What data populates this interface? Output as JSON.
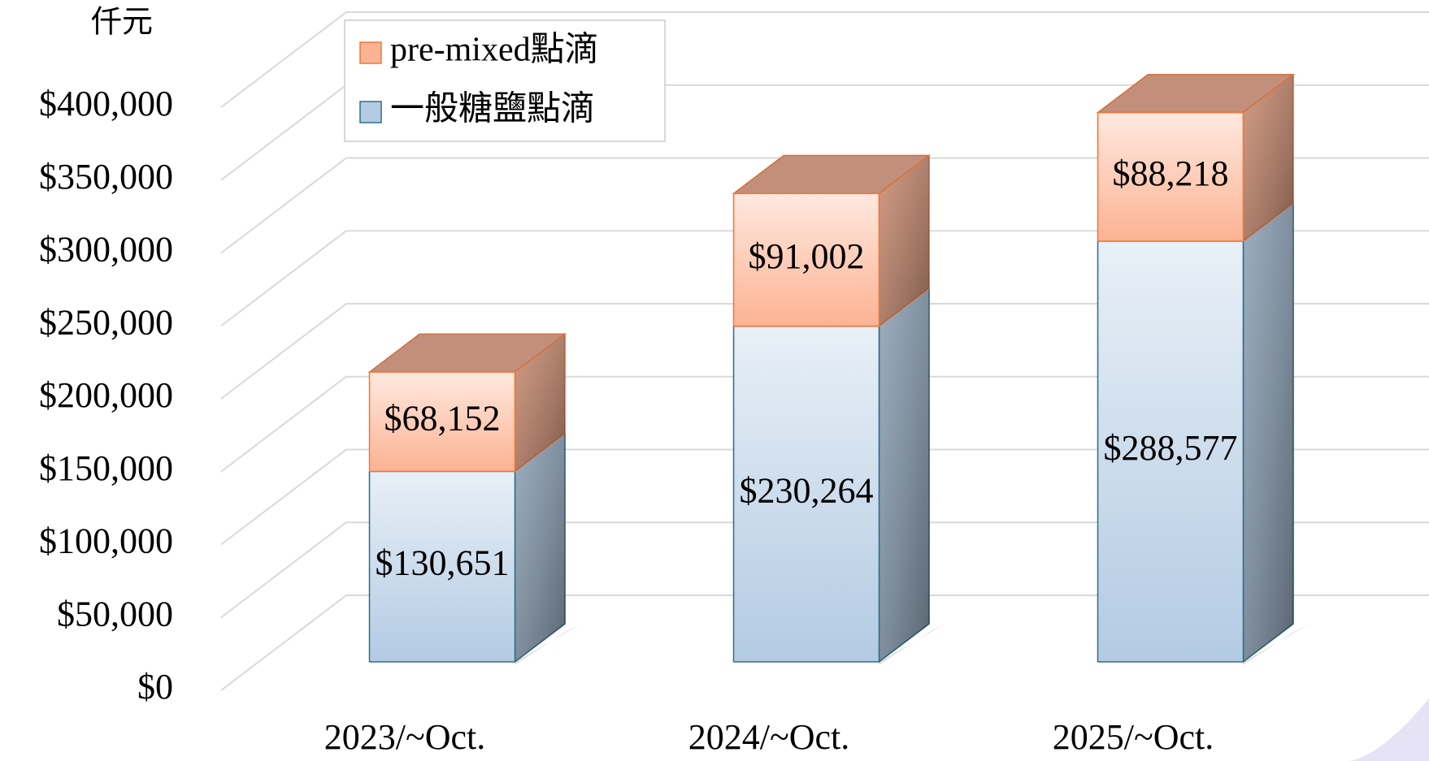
{
  "chart_data": {
    "type": "bar3d_stacked",
    "unit_label": "仟元",
    "categories": [
      "2023/~Oct.",
      "2024/~Oct.",
      "2025/~Oct."
    ],
    "series": [
      {
        "name": "一般糖鹽點滴",
        "color": "#b3cbe3",
        "border": "#2f6f88",
        "values": [
          130651,
          230264,
          288577
        ],
        "value_labels": [
          "$130,651",
          "$230,264",
          "$288,577"
        ]
      },
      {
        "name": "pre-mixed點滴",
        "color": "#fcb394",
        "border": "#ee7a3a",
        "values": [
          68152,
          91002,
          88218
        ],
        "value_labels": [
          "$68,152",
          "$91,002",
          "$88,218"
        ]
      }
    ],
    "ylim": [
      0,
      400000
    ],
    "yticks": [
      {
        "value": 0,
        "label": "$0"
      },
      {
        "value": 50000,
        "label": "$50,000"
      },
      {
        "value": 100000,
        "label": "$100,000"
      },
      {
        "value": 150000,
        "label": "$150,000"
      },
      {
        "value": 200000,
        "label": "$200,000"
      },
      {
        "value": 250000,
        "label": "$250,000"
      },
      {
        "value": 300000,
        "label": "$300,000"
      },
      {
        "value": 350000,
        "label": "$350,000"
      },
      {
        "value": 400000,
        "label": "$400,000"
      }
    ],
    "grid": true
  }
}
